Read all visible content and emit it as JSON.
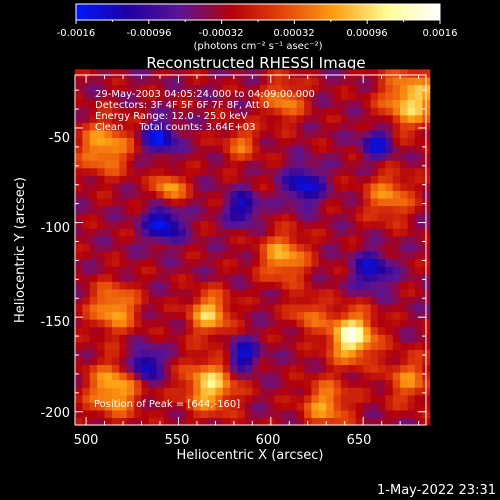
{
  "colorbar": {
    "tick_labels": [
      "-0.0016",
      "-0.00096",
      "-0.00032",
      "0.00032",
      "0.00096",
      "0.0016"
    ],
    "units_label": "(photons cm⁻² s⁻¹ asec⁻²)"
  },
  "footer": {
    "timestamp": "1-May-2022 23:31"
  },
  "chart_data": {
    "type": "heatmap",
    "title": "Reconstructed RHESSI Image",
    "xlabel": "Heliocentric X (arcsec)",
    "ylabel": "Heliocentric Y (arcsec)",
    "xlim": [
      494,
      684
    ],
    "ylim": [
      -207,
      -22
    ],
    "x_ticks": [
      500,
      550,
      600,
      650
    ],
    "y_ticks": [
      -200,
      -150,
      -100,
      -50
    ],
    "color_range": [
      -0.0016,
      0.0016
    ],
    "annotations": [
      "29-May-2003 04:05:24.000 to 04:09:00.000",
      "Detectors: 3F 4F 5F 6F 7F 8F, Att 0",
      "Energy Range: 12.0 - 25.0 keV",
      "Clean     Total counts: 3.64E+03"
    ],
    "peak_label": "Position of Peak = [644,-160]",
    "peak_position": [
      644,
      -160
    ],
    "colormap_stops": [
      "#0018ff",
      "#1e00a0",
      "#5a1496",
      "#b4000a",
      "#e6460a",
      "#ffa012",
      "#ffff96",
      "#ffffff"
    ],
    "hot_spots": [
      {
        "x": 644,
        "y": -160,
        "amplitude": 0.0017,
        "sigma": 9
      },
      {
        "x": 676,
        "y": -35,
        "amplitude": 0.0013,
        "sigma": 11
      },
      {
        "x": 510,
        "y": -60,
        "amplitude": 0.0011,
        "sigma": 10
      },
      {
        "x": 545,
        "y": -82,
        "amplitude": 0.0011,
        "sigma": 6
      },
      {
        "x": 607,
        "y": -118,
        "amplitude": 0.0011,
        "sigma": 9
      },
      {
        "x": 515,
        "y": -145,
        "amplitude": 0.0011,
        "sigma": 9
      },
      {
        "x": 567,
        "y": -148,
        "amplitude": 0.0012,
        "sigma": 8
      },
      {
        "x": 567,
        "y": -186,
        "amplitude": 0.0013,
        "sigma": 10
      },
      {
        "x": 515,
        "y": -188,
        "amplitude": 0.0012,
        "sigma": 10
      },
      {
        "x": 664,
        "y": -86,
        "amplitude": 0.0009,
        "sigma": 9
      },
      {
        "x": 630,
        "y": -196,
        "amplitude": 0.001,
        "sigma": 9
      },
      {
        "x": 607,
        "y": -35,
        "amplitude": 0.0009,
        "sigma": 8
      },
      {
        "x": 584,
        "y": -58,
        "amplitude": 0.0007,
        "sigma": 7
      },
      {
        "x": 620,
        "y": -148,
        "amplitude": 0.0007,
        "sigma": 7
      },
      {
        "x": 675,
        "y": -183,
        "amplitude": 0.0008,
        "sigma": 9
      }
    ],
    "cold_spots": [
      {
        "x": 540,
        "y": -55,
        "amplitude": 0.0012,
        "sigma": 6
      },
      {
        "x": 542,
        "y": -100,
        "amplitude": 0.0012,
        "sigma": 7
      },
      {
        "x": 532,
        "y": -175,
        "amplitude": 0.0012,
        "sigma": 6
      },
      {
        "x": 585,
        "y": -170,
        "amplitude": 0.0011,
        "sigma": 6
      },
      {
        "x": 618,
        "y": -80,
        "amplitude": 0.0011,
        "sigma": 7
      },
      {
        "x": 658,
        "y": -58,
        "amplitude": 0.001,
        "sigma": 6
      },
      {
        "x": 585,
        "y": -92,
        "amplitude": 0.001,
        "sigma": 6
      },
      {
        "x": 655,
        "y": -125,
        "amplitude": 0.001,
        "sigma": 7
      }
    ]
  }
}
